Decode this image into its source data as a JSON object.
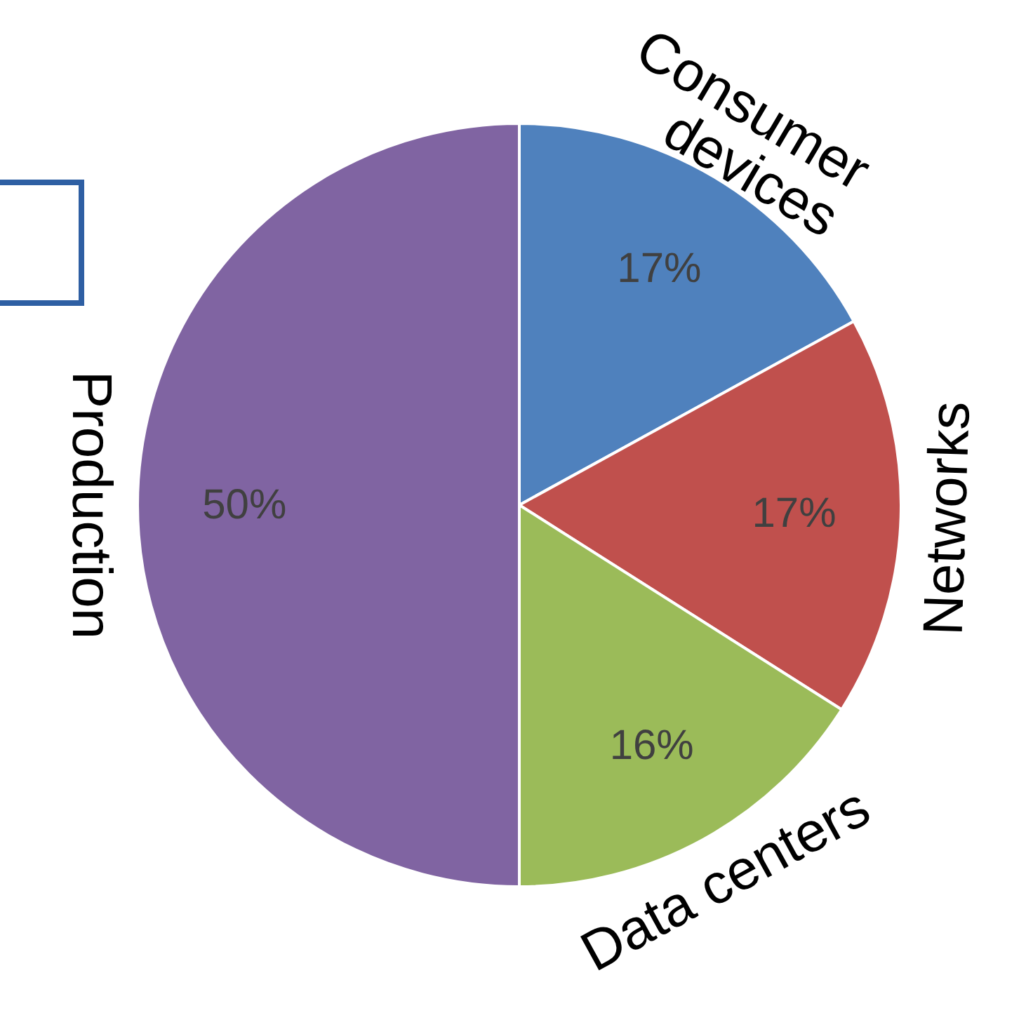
{
  "chart_data": {
    "type": "pie",
    "categories": [
      "Consumer devices",
      "Networks",
      "Data centers",
      "Production"
    ],
    "values": [
      17,
      17,
      16,
      50
    ],
    "colors": [
      "#4f81bd",
      "#c0504d",
      "#9bbb59",
      "#8064a2"
    ],
    "data_labels": true,
    "value_labels": [
      "17%",
      "17%",
      "16%",
      "50%"
    ]
  }
}
